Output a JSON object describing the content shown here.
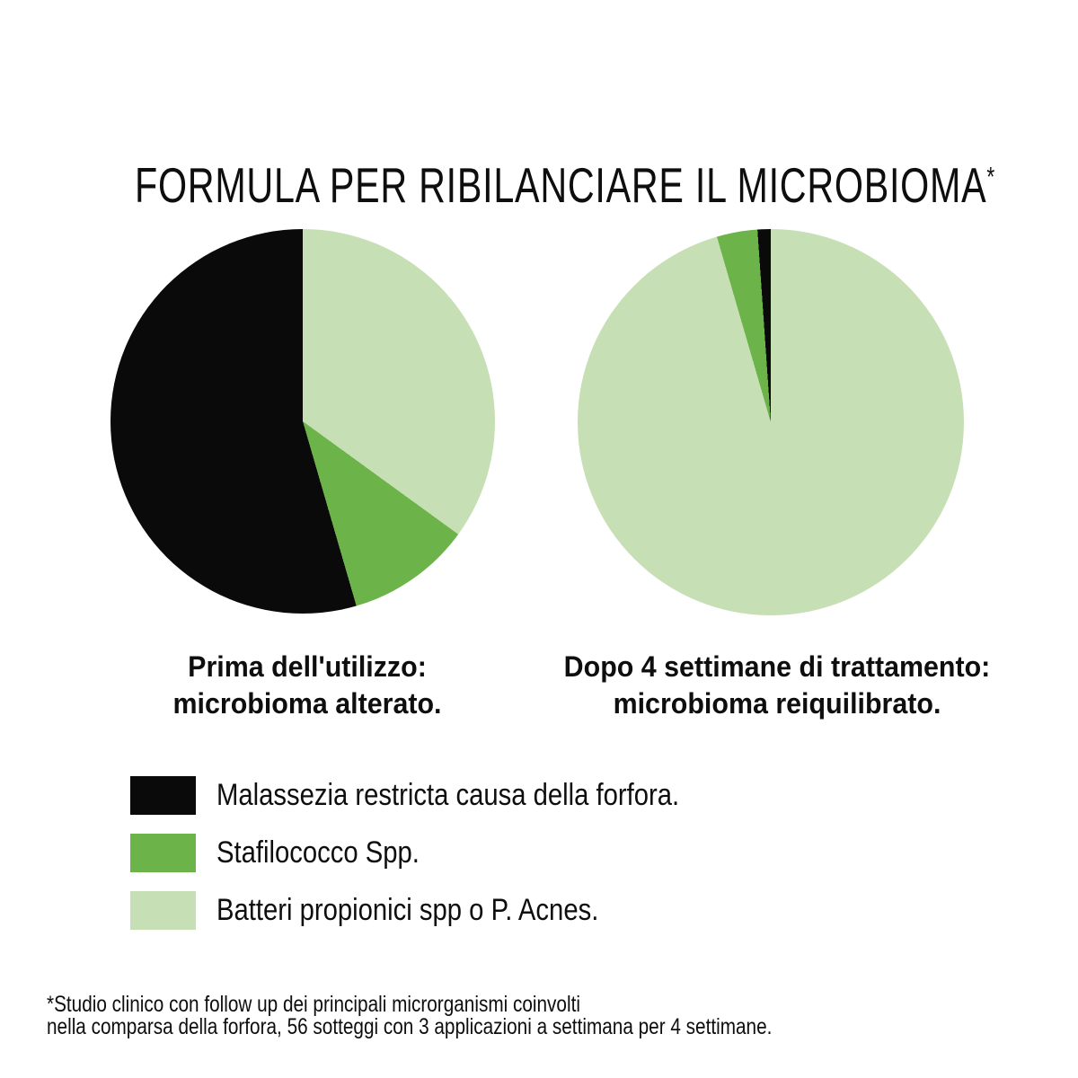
{
  "page_title": {
    "text": "FORMULA PER RIBILANCIARE IL MICROBIOMA",
    "footnote_marker": "*"
  },
  "colors": {
    "malassezia": "#0a0a0a",
    "stafilococco": "#6cb34a",
    "propionici": "#c6dfb4",
    "background": "#ffffff",
    "text": "#0e0e0e"
  },
  "chart_data": [
    {
      "type": "pie",
      "title": "Prima dell'utilizzo: microbioma alterato.",
      "caption_lines": [
        "Prima dell'utilizzo:",
        "microbioma alterato."
      ],
      "start_angle_deg": 0,
      "direction": "clockwise",
      "slices": [
        {
          "label": "Batteri propionici spp o P. Acnes.",
          "color_key": "propionici",
          "percent": 35.0
        },
        {
          "label": "Stafilococco Spp.",
          "color_key": "stafilococco",
          "percent": 10.5
        },
        {
          "label": "Malassezia restricta causa della forfora.",
          "color_key": "malassezia",
          "percent": 54.5
        }
      ]
    },
    {
      "type": "pie",
      "title": "Dopo 4 settimane di trattamento: microbioma reiquilibrato.",
      "caption_lines": [
        "Dopo 4 settimane di trattamento:",
        "microbioma reiquilibrato."
      ],
      "start_angle_deg": 0,
      "direction": "clockwise",
      "slices": [
        {
          "label": "Batteri propionici spp o P. Acnes.",
          "color_key": "propionici",
          "percent": 95.5
        },
        {
          "label": "Stafilococco Spp.",
          "color_key": "stafilococco",
          "percent": 3.4
        },
        {
          "label": "Malassezia restricta causa della forfora.",
          "color_key": "malassezia",
          "percent": 1.1
        }
      ]
    }
  ],
  "legend": {
    "items": [
      {
        "color_key": "malassezia",
        "label": "Malassezia restricta causa della forfora."
      },
      {
        "color_key": "stafilococco",
        "label": "Stafilococco Spp."
      },
      {
        "color_key": "propionici",
        "label": "Batteri propionici spp o P. Acnes."
      }
    ]
  },
  "footnote": {
    "lines": [
      "*Studio clinico con follow up dei principali microrganismi coinvolti",
      "nella comparsa della forfora, 56 sotteggi con 3 applicazioni a settimana per 4 settimane."
    ]
  }
}
